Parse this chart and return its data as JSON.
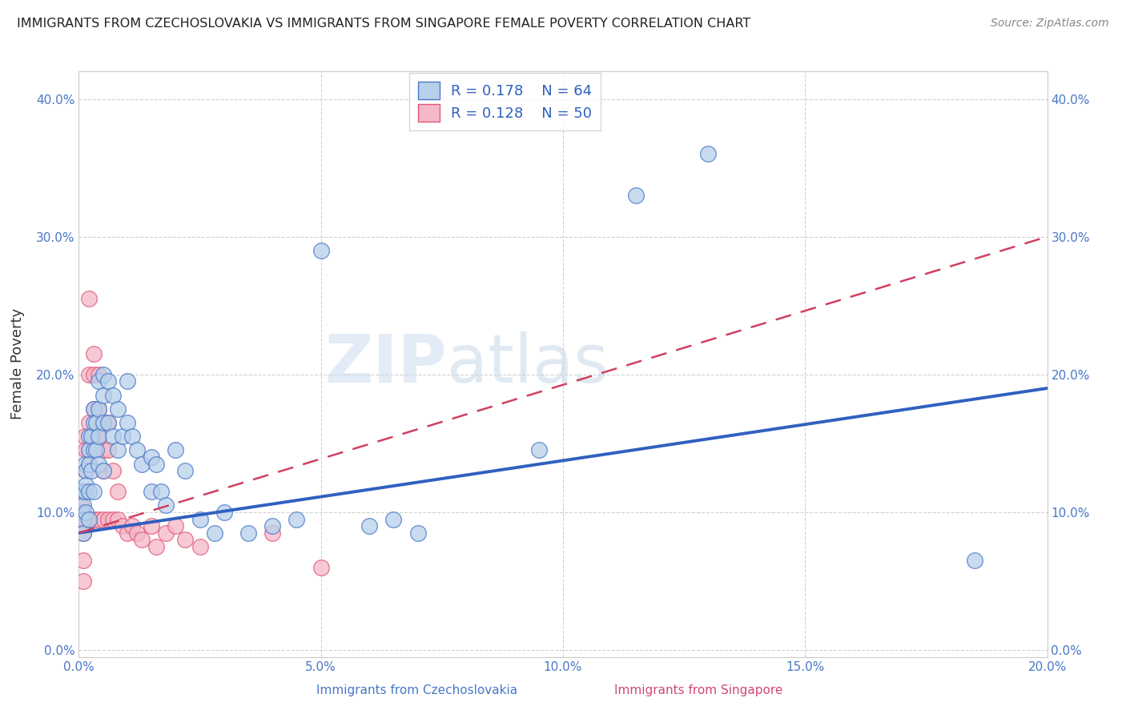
{
  "title": "IMMIGRANTS FROM CZECHOSLOVAKIA VS IMMIGRANTS FROM SINGAPORE FEMALE POVERTY CORRELATION CHART",
  "source": "Source: ZipAtlas.com",
  "xlabel_blue": "Immigrants from Czechoslovakia",
  "xlabel_pink": "Immigrants from Singapore",
  "ylabel": "Female Poverty",
  "watermark": "ZIPatlas",
  "legend_1_R": "R = 0.178",
  "legend_1_N": "N = 64",
  "legend_2_R": "R = 0.128",
  "legend_2_N": "N = 50",
  "color_blue_fill": "#b8d0ea",
  "color_blue_edge": "#4878c8",
  "color_pink_fill": "#f5b8c8",
  "color_pink_edge": "#e05878",
  "line_blue": "#3060c0",
  "line_pink": "#d04060",
  "xmin": 0.0,
  "xmax": 0.2,
  "ymin": -0.005,
  "ymax": 0.42,
  "yticks": [
    0.0,
    0.1,
    0.2,
    0.3,
    0.4
  ],
  "xticks": [
    0.0,
    0.05,
    0.1,
    0.15,
    0.2
  ],
  "blue_x": [
    0.0005,
    0.0008,
    0.001,
    0.001,
    0.001,
    0.0012,
    0.0012,
    0.0015,
    0.0015,
    0.0015,
    0.002,
    0.002,
    0.002,
    0.002,
    0.002,
    0.0025,
    0.0025,
    0.003,
    0.003,
    0.003,
    0.003,
    0.0035,
    0.0035,
    0.004,
    0.004,
    0.004,
    0.004,
    0.005,
    0.005,
    0.005,
    0.005,
    0.006,
    0.006,
    0.007,
    0.007,
    0.008,
    0.008,
    0.009,
    0.01,
    0.01,
    0.011,
    0.012,
    0.013,
    0.015,
    0.015,
    0.016,
    0.017,
    0.018,
    0.02,
    0.022,
    0.025,
    0.028,
    0.03,
    0.035,
    0.04,
    0.045,
    0.05,
    0.06,
    0.065,
    0.07,
    0.095,
    0.115,
    0.13,
    0.185
  ],
  "blue_y": [
    0.115,
    0.1,
    0.095,
    0.105,
    0.085,
    0.135,
    0.115,
    0.13,
    0.12,
    0.1,
    0.155,
    0.145,
    0.135,
    0.115,
    0.095,
    0.155,
    0.13,
    0.175,
    0.165,
    0.145,
    0.115,
    0.165,
    0.145,
    0.195,
    0.175,
    0.155,
    0.135,
    0.2,
    0.185,
    0.165,
    0.13,
    0.195,
    0.165,
    0.185,
    0.155,
    0.175,
    0.145,
    0.155,
    0.195,
    0.165,
    0.155,
    0.145,
    0.135,
    0.14,
    0.115,
    0.135,
    0.115,
    0.105,
    0.145,
    0.13,
    0.095,
    0.085,
    0.1,
    0.085,
    0.09,
    0.095,
    0.29,
    0.09,
    0.095,
    0.085,
    0.145,
    0.33,
    0.36,
    0.065
  ],
  "pink_x": [
    0.0003,
    0.0005,
    0.0007,
    0.001,
    0.001,
    0.001,
    0.001,
    0.001,
    0.0012,
    0.0015,
    0.0015,
    0.0015,
    0.002,
    0.002,
    0.002,
    0.002,
    0.002,
    0.003,
    0.003,
    0.003,
    0.003,
    0.003,
    0.004,
    0.004,
    0.004,
    0.004,
    0.005,
    0.005,
    0.005,
    0.005,
    0.006,
    0.006,
    0.006,
    0.007,
    0.007,
    0.008,
    0.008,
    0.009,
    0.01,
    0.011,
    0.012,
    0.013,
    0.015,
    0.016,
    0.018,
    0.02,
    0.022,
    0.025,
    0.04,
    0.05
  ],
  "pink_y": [
    0.115,
    0.105,
    0.09,
    0.115,
    0.1,
    0.085,
    0.065,
    0.05,
    0.155,
    0.145,
    0.13,
    0.095,
    0.255,
    0.2,
    0.165,
    0.145,
    0.095,
    0.215,
    0.2,
    0.175,
    0.155,
    0.095,
    0.2,
    0.175,
    0.155,
    0.095,
    0.165,
    0.145,
    0.13,
    0.095,
    0.165,
    0.145,
    0.095,
    0.13,
    0.095,
    0.115,
    0.095,
    0.09,
    0.085,
    0.09,
    0.085,
    0.08,
    0.09,
    0.075,
    0.085,
    0.09,
    0.08,
    0.075,
    0.085,
    0.06
  ],
  "blue_line_x0": 0.0,
  "blue_line_y0": 0.085,
  "blue_line_x1": 0.2,
  "blue_line_y1": 0.19,
  "pink_line_x0": 0.0,
  "pink_line_y0": 0.085,
  "pink_line_x1": 0.2,
  "pink_line_y1": 0.3
}
